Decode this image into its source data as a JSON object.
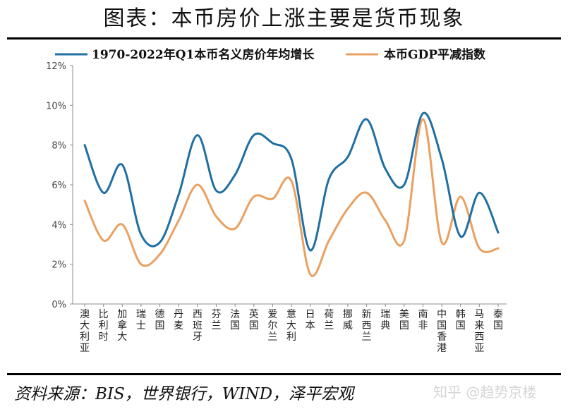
{
  "title": "图表：本币房价上涨主要是货币现象",
  "source": "资料来源：BIS，世界银行，WIND，泽平宏观",
  "watermark": "知乎 @趋势京楼",
  "colors": {
    "series1": "#1f6fa3",
    "series2": "#eaa061",
    "axis": "#8c8c8c",
    "text": "#111111"
  },
  "chart_data": {
    "type": "line",
    "title": "",
    "xlabel": "",
    "ylabel": "",
    "ylim": [
      0,
      12
    ],
    "yticks": [
      "0%",
      "2%",
      "4%",
      "6%",
      "8%",
      "10%",
      "12%"
    ],
    "grid": false,
    "legend_position": "top",
    "smooth": true,
    "categories": [
      "澳大利亚",
      "比利时",
      "加拿大",
      "瑞士",
      "德国",
      "丹麦",
      "西班牙",
      "芬兰",
      "法国",
      "英国",
      "爱尔兰",
      "意大利",
      "日本",
      "荷兰",
      "挪威",
      "新西兰",
      "瑞典",
      "美国",
      "南非",
      "中国香港",
      "韩国",
      "马来西亚",
      "泰国"
    ],
    "series": [
      {
        "name": "1970-2022年Q1本币名义房价年均增长",
        "color": "#1f6fa3",
        "values": [
          8.0,
          5.6,
          7.0,
          3.5,
          3.1,
          5.5,
          8.5,
          5.7,
          6.5,
          8.5,
          8.1,
          7.3,
          2.7,
          6.3,
          7.4,
          9.3,
          6.8,
          6.0,
          9.6,
          7.3,
          3.4,
          5.6,
          3.6
        ]
      },
      {
        "name": "本币GDP平减指数",
        "color": "#eaa061",
        "values": [
          5.2,
          3.2,
          4.0,
          2.0,
          2.5,
          4.2,
          6.0,
          4.4,
          3.8,
          5.4,
          5.3,
          6.2,
          1.5,
          3.2,
          4.8,
          5.6,
          4.2,
          3.2,
          9.3,
          3.1,
          5.4,
          2.8,
          2.8
        ]
      }
    ]
  }
}
